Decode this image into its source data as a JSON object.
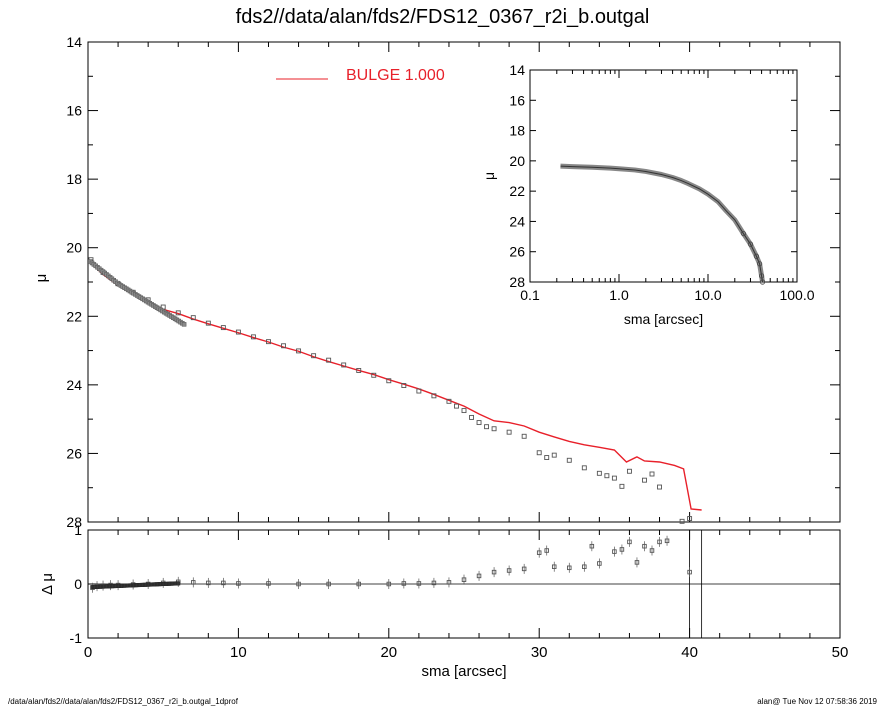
{
  "title": "fds2//data/alan/fds2/FDS12_0367_r2i_b.outgal",
  "footer": {
    "left": "/data/alan/fds2//data/alan/fds2/FDS12_0367_r2i_b.outgal_1dprof",
    "right": "alan@  Tue Nov 12 07:58:36 2019"
  },
  "colors": {
    "model": "#e8202a",
    "data": "#555555",
    "axis": "#000000"
  },
  "chart_data": [
    {
      "id": "main",
      "type": "scatter",
      "xlabel": "sma [arcsec]",
      "ylabel": "μ",
      "xlim": [
        0,
        50
      ],
      "ylim": [
        28,
        14
      ],
      "y_inverted": true,
      "xticks": [
        "0",
        "10",
        "20",
        "30",
        "40",
        "50"
      ],
      "yticks": [
        "14",
        "16",
        "18",
        "20",
        "22",
        "24",
        "26",
        "28"
      ],
      "legend": {
        "label": "BULGE  1.000",
        "position": "top-center"
      },
      "model_name": "BULGE",
      "model_line": [
        [
          0.2,
          20.45
        ],
        [
          1,
          20.78
        ],
        [
          2,
          21.1
        ],
        [
          3,
          21.35
        ],
        [
          4,
          21.58
        ],
        [
          5,
          21.8
        ],
        [
          6,
          21.92
        ],
        [
          7,
          22.08
        ],
        [
          8,
          22.22
        ],
        [
          9,
          22.35
        ],
        [
          10,
          22.48
        ],
        [
          11,
          22.62
        ],
        [
          12,
          22.75
        ],
        [
          13,
          22.9
        ],
        [
          14,
          23.02
        ],
        [
          15,
          23.18
        ],
        [
          16,
          23.32
        ],
        [
          17,
          23.45
        ],
        [
          18,
          23.58
        ],
        [
          19,
          23.7
        ],
        [
          20,
          23.85
        ],
        [
          21,
          23.98
        ],
        [
          22,
          24.12
        ],
        [
          23,
          24.28
        ],
        [
          24,
          24.45
        ],
        [
          25,
          24.62
        ],
        [
          26,
          24.85
        ],
        [
          27,
          25.05
        ],
        [
          28,
          25.1
        ],
        [
          29,
          25.2
        ],
        [
          30,
          25.38
        ],
        [
          31,
          25.52
        ],
        [
          32,
          25.65
        ],
        [
          33,
          25.75
        ],
        [
          34,
          25.82
        ],
        [
          35,
          25.9
        ],
        [
          35.8,
          26.25
        ],
        [
          36.5,
          26.1
        ],
        [
          37,
          26.22
        ],
        [
          38,
          26.25
        ],
        [
          39,
          26.35
        ],
        [
          39.6,
          26.45
        ],
        [
          40.1,
          27.62
        ],
        [
          40.8,
          27.65
        ]
      ],
      "data_points": [
        [
          0.2,
          20.35
        ],
        [
          1,
          20.72
        ],
        [
          2,
          21.05
        ],
        [
          3,
          21.3
        ],
        [
          4,
          21.52
        ],
        [
          5,
          21.73
        ],
        [
          6,
          21.9
        ],
        [
          7,
          22.04
        ],
        [
          8,
          22.2
        ],
        [
          9,
          22.33
        ],
        [
          10,
          22.46
        ],
        [
          11,
          22.6
        ],
        [
          12,
          22.74
        ],
        [
          13,
          22.86
        ],
        [
          14,
          23.01
        ],
        [
          15,
          23.15
        ],
        [
          16,
          23.28
        ],
        [
          17,
          23.42
        ],
        [
          18,
          23.58
        ],
        [
          19,
          23.72
        ],
        [
          20,
          23.88
        ],
        [
          21,
          24.02
        ],
        [
          22,
          24.18
        ],
        [
          23,
          24.32
        ],
        [
          24,
          24.48
        ],
        [
          24.5,
          24.62
        ],
        [
          25,
          24.75
        ],
        [
          25.5,
          24.95
        ],
        [
          26,
          25.1
        ],
        [
          26.5,
          25.22
        ],
        [
          27,
          25.28
        ],
        [
          28,
          25.38
        ],
        [
          29,
          25.5
        ],
        [
          30,
          25.98
        ],
        [
          30.5,
          26.12
        ],
        [
          31,
          26.05
        ],
        [
          32,
          26.2
        ],
        [
          33,
          26.42
        ],
        [
          34,
          26.58
        ],
        [
          34.5,
          26.65
        ],
        [
          35,
          26.72
        ],
        [
          35.5,
          26.96
        ],
        [
          36,
          26.52
        ],
        [
          37,
          26.78
        ],
        [
          37.5,
          26.6
        ],
        [
          38,
          26.98
        ],
        [
          39.5,
          27.98
        ],
        [
          40,
          27.9
        ]
      ],
      "residual_panel": {
        "ylabel": "Δ μ",
        "ylim": [
          -1,
          1
        ],
        "yticks": [
          "-1",
          "0",
          "1"
        ],
        "points": [
          [
            0.3,
            -0.07
          ],
          [
            0.6,
            -0.04
          ],
          [
            1,
            -0.03
          ],
          [
            1.5,
            -0.02
          ],
          [
            2,
            -0.02
          ],
          [
            3,
            -0.01
          ],
          [
            4,
            0
          ],
          [
            5,
            0.02
          ],
          [
            6,
            0.04
          ],
          [
            7,
            0.03
          ],
          [
            8,
            0.02
          ],
          [
            9,
            0.02
          ],
          [
            10,
            0.01
          ],
          [
            12,
            0.01
          ],
          [
            14,
            0
          ],
          [
            16,
            0
          ],
          [
            18,
            0
          ],
          [
            20,
            0
          ],
          [
            21,
            0.01
          ],
          [
            22,
            0.01
          ],
          [
            23,
            0.02
          ],
          [
            24,
            0.03
          ],
          [
            25,
            0.08
          ],
          [
            26,
            0.15
          ],
          [
            27,
            0.22
          ],
          [
            28,
            0.25
          ],
          [
            29,
            0.28
          ],
          [
            30,
            0.58
          ],
          [
            30.5,
            0.62
          ],
          [
            31,
            0.32
          ],
          [
            32,
            0.3
          ],
          [
            33,
            0.32
          ],
          [
            33.5,
            0.7
          ],
          [
            34,
            0.38
          ],
          [
            35,
            0.6
          ],
          [
            35.5,
            0.64
          ],
          [
            36,
            0.78
          ],
          [
            36.5,
            0.4
          ],
          [
            37,
            0.7
          ],
          [
            37.5,
            0.62
          ],
          [
            38,
            0.78
          ],
          [
            38.5,
            0.8
          ],
          [
            40,
            0.22
          ]
        ],
        "vlines": [
          40,
          40.8
        ]
      }
    },
    {
      "id": "inset",
      "type": "scatter",
      "xlabel": "sma [arcsec]",
      "ylabel": "μ",
      "xlim": [
        0.1,
        100
      ],
      "x_scale": "log",
      "ylim": [
        28,
        14
      ],
      "y_inverted": true,
      "xticks": [
        "0.1",
        "1.0",
        "10.0",
        "100.0"
      ],
      "yticks": [
        "14",
        "16",
        "18",
        "20",
        "22",
        "24",
        "26",
        "28"
      ],
      "profile": [
        [
          0.22,
          20.35
        ],
        [
          0.3,
          20.38
        ],
        [
          0.5,
          20.42
        ],
        [
          0.8,
          20.48
        ],
        [
          1,
          20.52
        ],
        [
          1.5,
          20.6
        ],
        [
          2,
          20.7
        ],
        [
          3,
          20.9
        ],
        [
          4,
          21.1
        ],
        [
          5,
          21.3
        ],
        [
          6,
          21.5
        ],
        [
          8,
          21.85
        ],
        [
          10,
          22.2
        ],
        [
          13,
          22.7
        ],
        [
          16,
          23.3
        ],
        [
          20,
          23.9
        ],
        [
          25,
          24.8
        ],
        [
          30,
          25.5
        ],
        [
          35,
          26.3
        ],
        [
          38,
          26.8
        ],
        [
          40,
          27.6
        ],
        [
          41,
          28
        ]
      ]
    }
  ]
}
